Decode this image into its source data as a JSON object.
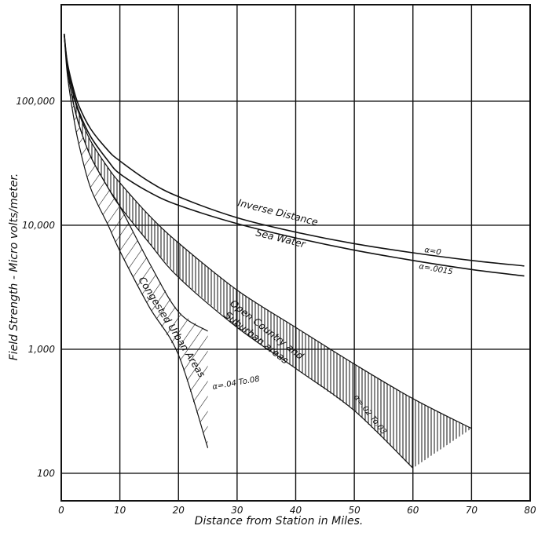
{
  "chart_data": {
    "type": "line",
    "title": "",
    "xlabel": "Distance from Station in Miles.",
    "ylabel": "Field Strength - Micro volts/meter.",
    "x_ticks": [
      "0",
      "10",
      "20",
      "30",
      "40",
      "50",
      "60",
      "70",
      "80"
    ],
    "y_ticks": [
      "100,000",
      "10,000",
      "1,000",
      "100"
    ],
    "xlim": [
      0,
      80
    ],
    "ylim": [
      60,
      600000
    ],
    "y_scale": "log",
    "grid": true,
    "series": [
      {
        "name": "Inverse Distance",
        "label": "α=0",
        "x": [
          0.5,
          1,
          2,
          3,
          5,
          8,
          10,
          15,
          20,
          30,
          40,
          50,
          60,
          70,
          79
        ],
        "values": [
          350000,
          210000,
          130000,
          92000,
          60000,
          40000,
          33000,
          22500,
          17000,
          11500,
          8800,
          7100,
          6000,
          5200,
          4700
        ]
      },
      {
        "name": "Sea Water",
        "label": "α=.0015",
        "x": [
          0.5,
          1,
          2,
          3,
          5,
          8,
          10,
          15,
          20,
          30,
          40,
          50,
          60,
          70,
          79
        ],
        "values": [
          350000,
          205000,
          120000,
          83000,
          52000,
          33000,
          26000,
          18500,
          14500,
          10300,
          7900,
          6300,
          5200,
          4400,
          3900
        ]
      },
      {
        "name": "Open Country and Suburban areas",
        "label": "α=.02 To.03",
        "upper": {
          "x": [
            0.5,
            1,
            2,
            3,
            5,
            8,
            10,
            15,
            20,
            30,
            40,
            50,
            60,
            70
          ],
          "values": [
            350000,
            200000,
            115000,
            80000,
            48000,
            29000,
            22000,
            12000,
            7200,
            3000,
            1500,
            760,
            400,
            230
          ]
        },
        "lower": {
          "x": [
            0.5,
            1,
            2,
            3,
            5,
            8,
            10,
            15,
            20,
            30,
            40,
            50,
            60
          ],
          "values": [
            350000,
            190000,
            100000,
            65000,
            36000,
            20000,
            14200,
            7200,
            3800,
            1500,
            700,
            320,
            110
          ]
        }
      },
      {
        "name": "Congested Urban Areas",
        "label": "α=.04 To.08",
        "upper": {
          "x": [
            0.5,
            1,
            2,
            3,
            5,
            8,
            10,
            15,
            20,
            25
          ],
          "values": [
            350000,
            190000,
            100000,
            65000,
            36000,
            20000,
            14200,
            5000,
            2000,
            1400
          ]
        },
        "lower": {
          "x": [
            0.5,
            1,
            2,
            3,
            5,
            8,
            10,
            15,
            20,
            25
          ],
          "values": [
            350000,
            170000,
            80000,
            45000,
            20000,
            10000,
            6200,
            2200,
            900,
            160
          ]
        }
      }
    ],
    "annotations": [
      {
        "text": "Inverse Distance"
      },
      {
        "text": "Sea Water"
      },
      {
        "text": "α=0"
      },
      {
        "text": "α=.0015"
      },
      {
        "text": "Open Country and"
      },
      {
        "text": "Suburban areas"
      },
      {
        "text": "Congested Urban Areas"
      },
      {
        "text": "α=.04 To.08"
      },
      {
        "text": "α=.02 To.03"
      }
    ]
  }
}
